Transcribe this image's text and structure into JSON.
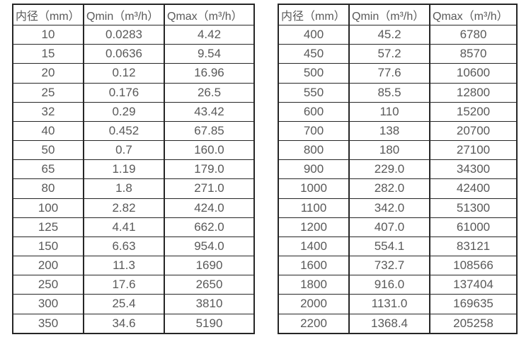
{
  "colors": {
    "background": "#ffffff",
    "border": "#262626",
    "text": "#595959"
  },
  "tables": [
    {
      "name": "flow-spec-small-diameters",
      "headers": [
        "内径（mm）",
        "Qmin（m³/h）",
        "Qmax（m³/h）"
      ],
      "rows": [
        [
          "10",
          "0.0283",
          "4.42"
        ],
        [
          "15",
          "0.0636",
          "9.54"
        ],
        [
          "20",
          "0.12",
          "16.96"
        ],
        [
          "25",
          "0.176",
          "26.5"
        ],
        [
          "32",
          "0.29",
          "43.42"
        ],
        [
          "40",
          "0.452",
          "67.85"
        ],
        [
          "50",
          "0.7",
          "160.0"
        ],
        [
          "65",
          "1.19",
          "179.0"
        ],
        [
          "80",
          "1.8",
          "271.0"
        ],
        [
          "100",
          "2.82",
          "424.0"
        ],
        [
          "125",
          "4.41",
          "662.0"
        ],
        [
          "150",
          "6.63",
          "954.0"
        ],
        [
          "200",
          "11.3",
          "1690"
        ],
        [
          "250",
          "17.6",
          "2650"
        ],
        [
          "300",
          "25.4",
          "3810"
        ],
        [
          "350",
          "34.6",
          "5190"
        ]
      ]
    },
    {
      "name": "flow-spec-large-diameters",
      "headers": [
        "内径（mm）",
        "Qmin（m³/h）",
        "Qmax（m³/h）"
      ],
      "rows": [
        [
          "400",
          "45.2",
          "6780"
        ],
        [
          "450",
          "57.2",
          "8570"
        ],
        [
          "500",
          "77.6",
          "10600"
        ],
        [
          "550",
          "85.5",
          "12800"
        ],
        [
          "600",
          "110",
          "15200"
        ],
        [
          "700",
          "138",
          "20700"
        ],
        [
          "800",
          "180",
          "27100"
        ],
        [
          "900",
          "229.0",
          "34300"
        ],
        [
          "1000",
          "282.0",
          "42400"
        ],
        [
          "1100",
          "342.0",
          "51300"
        ],
        [
          "1200",
          "407.0",
          "61000"
        ],
        [
          "1400",
          "554.1",
          "83121"
        ],
        [
          "1600",
          "732.7",
          "108566"
        ],
        [
          "1800",
          "916.0",
          "137404"
        ],
        [
          "2000",
          "1131.0",
          "169635"
        ],
        [
          "2200",
          "1368.4",
          "205258"
        ]
      ]
    }
  ],
  "chart_data": [
    {
      "type": "table",
      "title": "",
      "columns": [
        "内径（mm）",
        "Qmin（m³/h）",
        "Qmax（m³/h）"
      ],
      "rows": [
        [
          10,
          0.0283,
          4.42
        ],
        [
          15,
          0.0636,
          9.54
        ],
        [
          20,
          0.12,
          16.96
        ],
        [
          25,
          0.176,
          26.5
        ],
        [
          32,
          0.29,
          43.42
        ],
        [
          40,
          0.452,
          67.85
        ],
        [
          50,
          0.7,
          160.0
        ],
        [
          65,
          1.19,
          179.0
        ],
        [
          80,
          1.8,
          271.0
        ],
        [
          100,
          2.82,
          424.0
        ],
        [
          125,
          4.41,
          662.0
        ],
        [
          150,
          6.63,
          954.0
        ],
        [
          200,
          11.3,
          1690
        ],
        [
          250,
          17.6,
          2650
        ],
        [
          300,
          25.4,
          3810
        ],
        [
          350,
          34.6,
          5190
        ]
      ]
    },
    {
      "type": "table",
      "title": "",
      "columns": [
        "内径（mm）",
        "Qmin（m³/h）",
        "Qmax（m³/h）"
      ],
      "rows": [
        [
          400,
          45.2,
          6780
        ],
        [
          450,
          57.2,
          8570
        ],
        [
          500,
          77.6,
          10600
        ],
        [
          550,
          85.5,
          12800
        ],
        [
          600,
          110,
          15200
        ],
        [
          700,
          138,
          20700
        ],
        [
          800,
          180,
          27100
        ],
        [
          900,
          229.0,
          34300
        ],
        [
          1000,
          282.0,
          42400
        ],
        [
          1100,
          342.0,
          51300
        ],
        [
          1200,
          407.0,
          61000
        ],
        [
          1400,
          554.1,
          83121
        ],
        [
          1600,
          732.7,
          108566
        ],
        [
          1800,
          916.0,
          137404
        ],
        [
          2000,
          1131.0,
          169635
        ],
        [
          2200,
          1368.4,
          205258
        ]
      ]
    }
  ]
}
